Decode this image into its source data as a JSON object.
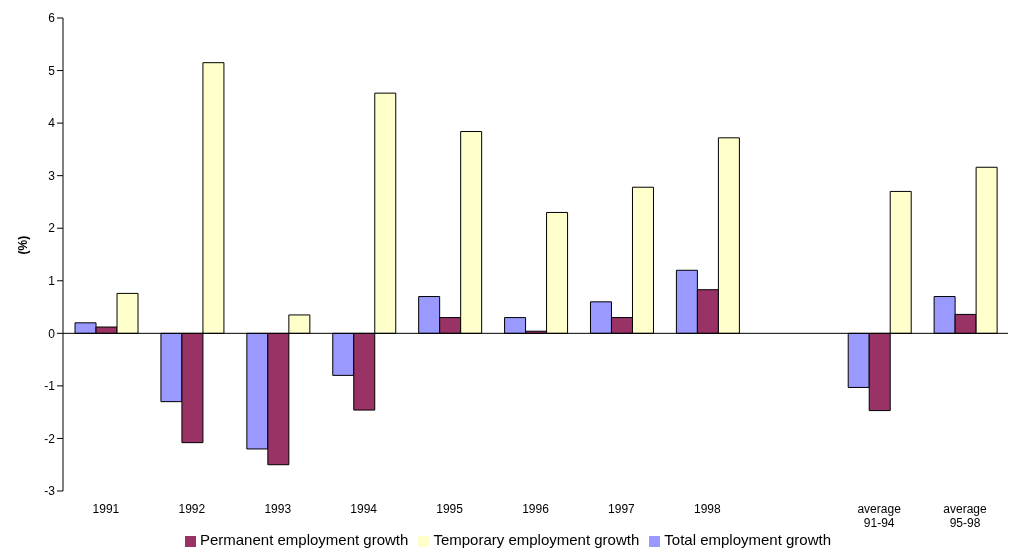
{
  "chart_data": {
    "type": "bar",
    "ylabel": "(%)",
    "categories": [
      "1991",
      "1992",
      "1993",
      "1994",
      "1995",
      "1996",
      "1997",
      "1998",
      null,
      "average 91-94",
      "average 95-98"
    ],
    "series": [
      {
        "name": "Total employment growth",
        "color": "#9999ff",
        "values": [
          0.2,
          -1.3,
          -2.2,
          -0.8,
          0.7,
          0.3,
          0.6,
          1.2,
          null,
          -1.03,
          0.7
        ]
      },
      {
        "name": "Permanent employment growth",
        "color": "#993366",
        "values": [
          0.12,
          -2.08,
          -2.5,
          -1.46,
          0.3,
          0.04,
          0.3,
          0.83,
          null,
          -1.47,
          0.36
        ]
      },
      {
        "name": "Temporary employment growth",
        "color": "#ffffcc",
        "values": [
          0.76,
          5.15,
          0.35,
          4.57,
          3.84,
          2.3,
          2.78,
          3.72,
          null,
          2.7,
          3.16
        ]
      }
    ],
    "ylim": [
      -3,
      6
    ],
    "yticks": [
      -3,
      -2,
      -1,
      0,
      1,
      2,
      3,
      4,
      5,
      6
    ],
    "ref_lines": [
      {
        "axis": "y",
        "value": 0,
        "color": "#000000"
      }
    ],
    "legend": "bottom"
  }
}
